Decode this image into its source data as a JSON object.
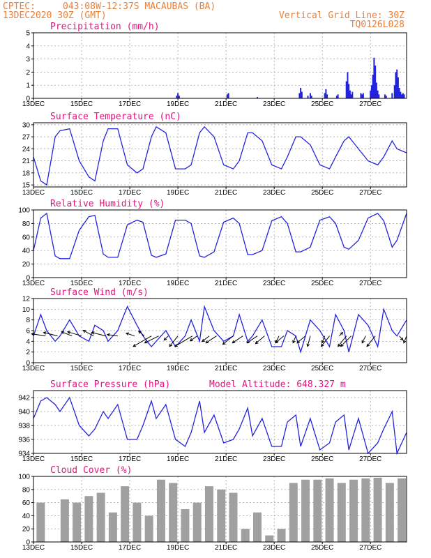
{
  "header": {
    "source": "CPTEC:",
    "location": "043:08W-12:37S  MACAUBAS (BA)",
    "run": "13DEC2020 30Z (GMT)",
    "grid_note": "Vertical Grid Line: 30Z",
    "code": "TQ0126L028"
  },
  "colors": {
    "line": "#2222dd",
    "title": "#e0147c",
    "header": "#e8803a",
    "cloud": "#a0a0a0",
    "arrow": "#000000"
  },
  "chart_data": [
    {
      "id": "precip",
      "type": "bar",
      "title": "Precipitation (mm/h)",
      "ylim": [
        0,
        5
      ],
      "yticks": [
        0,
        1,
        2,
        3,
        4,
        5
      ],
      "xlim": [
        13,
        28.5
      ],
      "xticks": [
        "13DEC",
        "15DEC",
        "17DEC",
        "19DEC",
        "21DEC",
        "23DEC",
        "25DEC",
        "27DEC"
      ],
      "grid": true,
      "series": [
        {
          "x": [
            18.95,
            19.0,
            19.05,
            21.05,
            21.1,
            22.3,
            24.05,
            24.1,
            24.15,
            24.4,
            24.5,
            24.55,
            25.1,
            25.15,
            25.2,
            25.6,
            25.65,
            26.0,
            26.05,
            26.1,
            26.15,
            26.2,
            26.25,
            26.6,
            26.65,
            26.7,
            27.0,
            27.05,
            27.1,
            27.15,
            27.2,
            27.25,
            27.3,
            27.35,
            27.6,
            27.65,
            27.9,
            28.0,
            28.05,
            28.1,
            28.15,
            28.2,
            28.25,
            28.3,
            28.35,
            28.4
          ],
          "values": [
            0.2,
            0.4,
            0.2,
            0.3,
            0.4,
            0.1,
            0.4,
            0.8,
            0.5,
            0.2,
            0.4,
            0.2,
            0.4,
            0.7,
            0.3,
            0.2,
            0.3,
            1.3,
            2.0,
            1.1,
            0.6,
            0.3,
            0.5,
            0.4,
            0.3,
            0.4,
            0.6,
            1.0,
            1.8,
            3.1,
            2.5,
            1.2,
            0.6,
            0.3,
            0.3,
            0.2,
            0.4,
            1.0,
            2.0,
            2.2,
            1.6,
            0.8,
            0.5,
            0.3,
            0.4,
            0.3
          ]
        }
      ]
    },
    {
      "id": "temp",
      "type": "line",
      "title": "Surface Temperature (nC)",
      "ylim": [
        14.5,
        30.5
      ],
      "yticks": [
        15,
        18,
        21,
        24,
        27,
        30
      ],
      "xlim": [
        13,
        28.5
      ],
      "xticks": [
        "13DEC",
        "15DEC",
        "17DEC",
        "19DEC",
        "21DEC",
        "23DEC",
        "25DEC",
        "27DEC"
      ],
      "grid": true,
      "series": [
        {
          "x": [
            13.0,
            13.3,
            13.55,
            13.9,
            14.1,
            14.5,
            14.9,
            15.3,
            15.55,
            15.9,
            16.1,
            16.5,
            16.9,
            17.3,
            17.55,
            17.9,
            18.1,
            18.5,
            18.9,
            19.3,
            19.55,
            19.9,
            20.1,
            20.5,
            20.9,
            21.3,
            21.55,
            21.9,
            22.1,
            22.5,
            22.9,
            23.3,
            23.55,
            23.9,
            24.1,
            24.5,
            24.9,
            25.3,
            25.55,
            25.9,
            26.1,
            26.5,
            26.9,
            27.3,
            27.55,
            27.9,
            28.1,
            28.5
          ],
          "values": [
            22,
            16,
            15,
            27,
            28.5,
            29,
            21,
            17,
            16,
            26,
            29,
            29,
            20,
            18,
            19,
            27,
            29.5,
            28,
            19,
            19,
            20,
            28,
            29.5,
            27,
            20,
            19,
            21,
            28,
            28,
            26,
            20,
            19,
            22,
            27,
            27,
            25,
            20,
            19,
            22,
            26,
            27,
            24,
            21,
            20,
            22,
            26,
            24,
            23
          ]
        }
      ]
    },
    {
      "id": "rh",
      "type": "line",
      "title": "Relative Humidity (%)",
      "ylim": [
        0,
        100
      ],
      "yticks": [
        0,
        20,
        40,
        60,
        80,
        100
      ],
      "xlim": [
        13,
        28.5
      ],
      "xticks": [
        "13DEC",
        "15DEC",
        "17DEC",
        "19DEC",
        "21DEC",
        "23DEC",
        "25DEC",
        "27DEC"
      ],
      "grid": true,
      "series": [
        {
          "x": [
            13.0,
            13.3,
            13.55,
            13.9,
            14.1,
            14.5,
            14.9,
            15.3,
            15.55,
            15.9,
            16.1,
            16.5,
            16.9,
            17.3,
            17.55,
            17.9,
            18.1,
            18.5,
            18.9,
            19.3,
            19.55,
            19.9,
            20.1,
            20.5,
            20.9,
            21.3,
            21.55,
            21.9,
            22.1,
            22.5,
            22.9,
            23.3,
            23.55,
            23.9,
            24.1,
            24.5,
            24.9,
            25.3,
            25.55,
            25.9,
            26.1,
            26.5,
            26.9,
            27.3,
            27.55,
            27.9,
            28.1,
            28.5
          ],
          "values": [
            40,
            88,
            95,
            32,
            28,
            28,
            70,
            90,
            92,
            35,
            30,
            30,
            78,
            85,
            82,
            33,
            30,
            35,
            85,
            85,
            80,
            32,
            30,
            38,
            82,
            88,
            80,
            34,
            34,
            40,
            84,
            90,
            80,
            38,
            38,
            45,
            85,
            90,
            80,
            45,
            42,
            55,
            88,
            95,
            84,
            45,
            55,
            95
          ]
        }
      ]
    },
    {
      "id": "wind",
      "type": "line",
      "title": "Surface Wind (m/s)",
      "ylim": [
        0,
        12
      ],
      "yticks": [
        0,
        2,
        4,
        6,
        8,
        10,
        12
      ],
      "xlim": [
        13,
        28.5
      ],
      "xticks": [
        "13DEC",
        "15DEC",
        "17DEC",
        "19DEC",
        "21DEC",
        "23DEC",
        "25DEC",
        "27DEC"
      ],
      "grid": true,
      "series": [
        {
          "x": [
            13.0,
            13.3,
            13.55,
            13.9,
            14.1,
            14.5,
            14.9,
            15.3,
            15.55,
            15.9,
            16.1,
            16.5,
            16.9,
            17.3,
            17.55,
            17.9,
            18.1,
            18.5,
            18.9,
            19.3,
            19.55,
            19.9,
            20.1,
            20.5,
            20.9,
            21.3,
            21.55,
            21.9,
            22.1,
            22.5,
            22.9,
            23.3,
            23.55,
            23.9,
            24.1,
            24.5,
            24.9,
            25.3,
            25.55,
            25.9,
            26.1,
            26.5,
            26.9,
            27.3,
            27.55,
            27.9,
            28.1,
            28.5
          ],
          "values": [
            5,
            9,
            6,
            4,
            5,
            8,
            5,
            4,
            7,
            6,
            4,
            6,
            10.5,
            7,
            5,
            3,
            4,
            6,
            3,
            5,
            8,
            4,
            10.5,
            6,
            4,
            5,
            9,
            4,
            5,
            8,
            3,
            3,
            6,
            5,
            2,
            8,
            6,
            3,
            9,
            6,
            2,
            9,
            7,
            3,
            10,
            6,
            5,
            8
          ]
        }
      ],
      "arrows": [
        {
          "x": 13.5,
          "u": -2,
          "v": 0.3
        },
        {
          "x": 14.0,
          "u": -2,
          "v": 0.5
        },
        {
          "x": 14.6,
          "u": -1.5,
          "v": 0.6
        },
        {
          "x": 15.0,
          "u": -2,
          "v": 0.6
        },
        {
          "x": 15.5,
          "u": -1.5,
          "v": 0.8
        },
        {
          "x": 16.0,
          "u": -2,
          "v": 0.5
        },
        {
          "x": 16.5,
          "u": -1.5,
          "v": 0.2
        },
        {
          "x": 17.2,
          "u": -1.2,
          "v": 0.4
        },
        {
          "x": 17.6,
          "u": -0.8,
          "v": 0.7
        },
        {
          "x": 17.9,
          "u": -2.6,
          "v": -1.5
        },
        {
          "x": 18.2,
          "u": -2,
          "v": -1.0
        },
        {
          "x": 18.6,
          "u": -0.6,
          "v": -0.6
        },
        {
          "x": 19.0,
          "u": -1.2,
          "v": -1.5
        },
        {
          "x": 19.6,
          "u": -2.5,
          "v": -1.5
        },
        {
          "x": 19.8,
          "u": -1.0,
          "v": -0.7
        },
        {
          "x": 20.3,
          "u": -1.0,
          "v": -0.8
        },
        {
          "x": 20.6,
          "u": -1.5,
          "v": -1.0
        },
        {
          "x": 21.3,
          "u": -1.5,
          "v": -1.2
        },
        {
          "x": 21.7,
          "u": -1.5,
          "v": -1.0
        },
        {
          "x": 22.3,
          "u": -1.5,
          "v": -1.0
        },
        {
          "x": 22.6,
          "u": -1.3,
          "v": -1.1
        },
        {
          "x": 23.2,
          "u": -0.5,
          "v": -1.0
        },
        {
          "x": 23.4,
          "u": -1.2,
          "v": -1.0
        },
        {
          "x": 23.9,
          "u": -0.4,
          "v": -1.0
        },
        {
          "x": 24.3,
          "u": -1.2,
          "v": -1.0
        },
        {
          "x": 24.5,
          "u": -0.4,
          "v": -1.5
        },
        {
          "x": 25.1,
          "u": -0.4,
          "v": -1.0
        },
        {
          "x": 25.3,
          "u": -1.2,
          "v": -1.5
        },
        {
          "x": 25.7,
          "u": 0.5,
          "v": 0.5
        },
        {
          "x": 26.0,
          "u": -1.2,
          "v": -1.5
        },
        {
          "x": 26.2,
          "u": -1.5,
          "v": -1.5
        },
        {
          "x": 26.8,
          "u": -0.5,
          "v": -1.0
        },
        {
          "x": 27.2,
          "u": -1.2,
          "v": -1.5
        },
        {
          "x": 28.2,
          "u": 0.5,
          "v": -0.6
        },
        {
          "x": 28.5,
          "u": -0.4,
          "v": -1.0
        }
      ]
    },
    {
      "id": "pressure",
      "type": "line",
      "title": "Surface Pressure (hPa)",
      "subtitle": "Model Altitude: 648.327  m",
      "ylim": [
        934,
        943
      ],
      "yticks": [
        934,
        936,
        938,
        940,
        942
      ],
      "xlim": [
        13,
        28.5
      ],
      "xticks": [
        "13DEC",
        "15DEC",
        "17DEC",
        "19DEC",
        "21DEC",
        "23DEC",
        "25DEC",
        "27DEC"
      ],
      "grid": true,
      "series": [
        {
          "x": [
            13.0,
            13.3,
            13.55,
            13.9,
            14.1,
            14.5,
            14.9,
            15.3,
            15.55,
            15.9,
            16.1,
            16.5,
            16.9,
            17.3,
            17.55,
            17.9,
            18.1,
            18.5,
            18.9,
            19.3,
            19.55,
            19.9,
            20.1,
            20.5,
            20.9,
            21.3,
            21.55,
            21.9,
            22.1,
            22.5,
            22.9,
            23.3,
            23.55,
            23.9,
            24.1,
            24.5,
            24.9,
            25.3,
            25.55,
            25.9,
            26.1,
            26.5,
            26.9,
            27.3,
            27.55,
            27.9,
            28.1,
            28.5
          ],
          "values": [
            939,
            941.5,
            942,
            941,
            940,
            942,
            938,
            936.5,
            937.5,
            940,
            939,
            941,
            936,
            936,
            938,
            941.5,
            939,
            941,
            936,
            935,
            937,
            941.5,
            937,
            939.5,
            935.5,
            936,
            937.5,
            940.5,
            936.5,
            939,
            935,
            935,
            938.5,
            939.5,
            935,
            939,
            934.5,
            935.5,
            938.5,
            939.5,
            934.5,
            939,
            934,
            935.5,
            937.5,
            940,
            934,
            937
          ]
        }
      ]
    },
    {
      "id": "cloud",
      "type": "bar",
      "title": "Cloud Cover (%)",
      "ylim": [
        0,
        100
      ],
      "yticks": [
        0,
        20,
        40,
        60,
        80,
        100
      ],
      "xlim": [
        13,
        28.5
      ],
      "xticks": [
        "13DEC",
        "15DEC",
        "17DEC",
        "19DEC",
        "21DEC",
        "23DEC",
        "25DEC",
        "27DEC"
      ],
      "grid": true,
      "series": [
        {
          "x": [
            13.3,
            13.8,
            14.3,
            14.8,
            15.3,
            15.8,
            16.3,
            16.8,
            17.3,
            17.8,
            18.3,
            18.8,
            19.3,
            19.8,
            20.3,
            20.8,
            21.3,
            21.8,
            22.3,
            22.8,
            23.3,
            23.8,
            24.3,
            24.8,
            25.3,
            25.8,
            26.3,
            26.8,
            27.3,
            27.8,
            28.3
          ],
          "values": [
            60,
            0,
            65,
            60,
            70,
            75,
            45,
            85,
            60,
            40,
            95,
            90,
            50,
            60,
            85,
            80,
            75,
            20,
            45,
            10,
            20,
            90,
            95,
            95,
            97,
            90,
            95,
            97,
            98,
            90,
            97
          ]
        }
      ]
    }
  ]
}
